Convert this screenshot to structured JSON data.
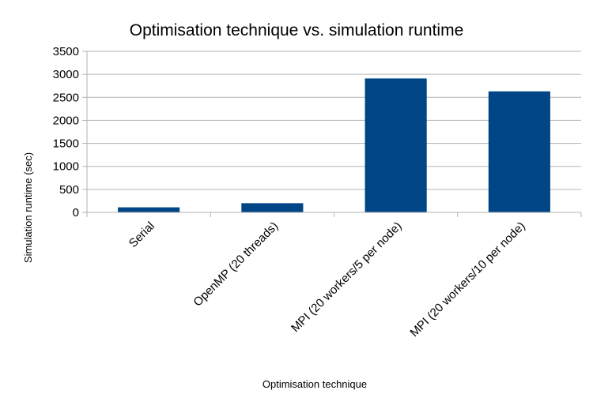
{
  "chart_data": {
    "type": "bar",
    "title": "Optimisation technique vs. simulation runtime",
    "xlabel": "Optimisation technique",
    "ylabel": "Simulation runtime (sec)",
    "categories": [
      "Serial",
      "OpenMP (20 threads)",
      "MPI (20 workers/5 per node)",
      "MPI (20 workers/10 per node)"
    ],
    "values": [
      110,
      200,
      2910,
      2630
    ],
    "ylim": [
      0,
      3500
    ],
    "yticks": [
      0,
      500,
      1000,
      1500,
      2000,
      2500,
      3000,
      3500
    ],
    "grid": true,
    "legend": "none",
    "bar_color": "#004586"
  }
}
